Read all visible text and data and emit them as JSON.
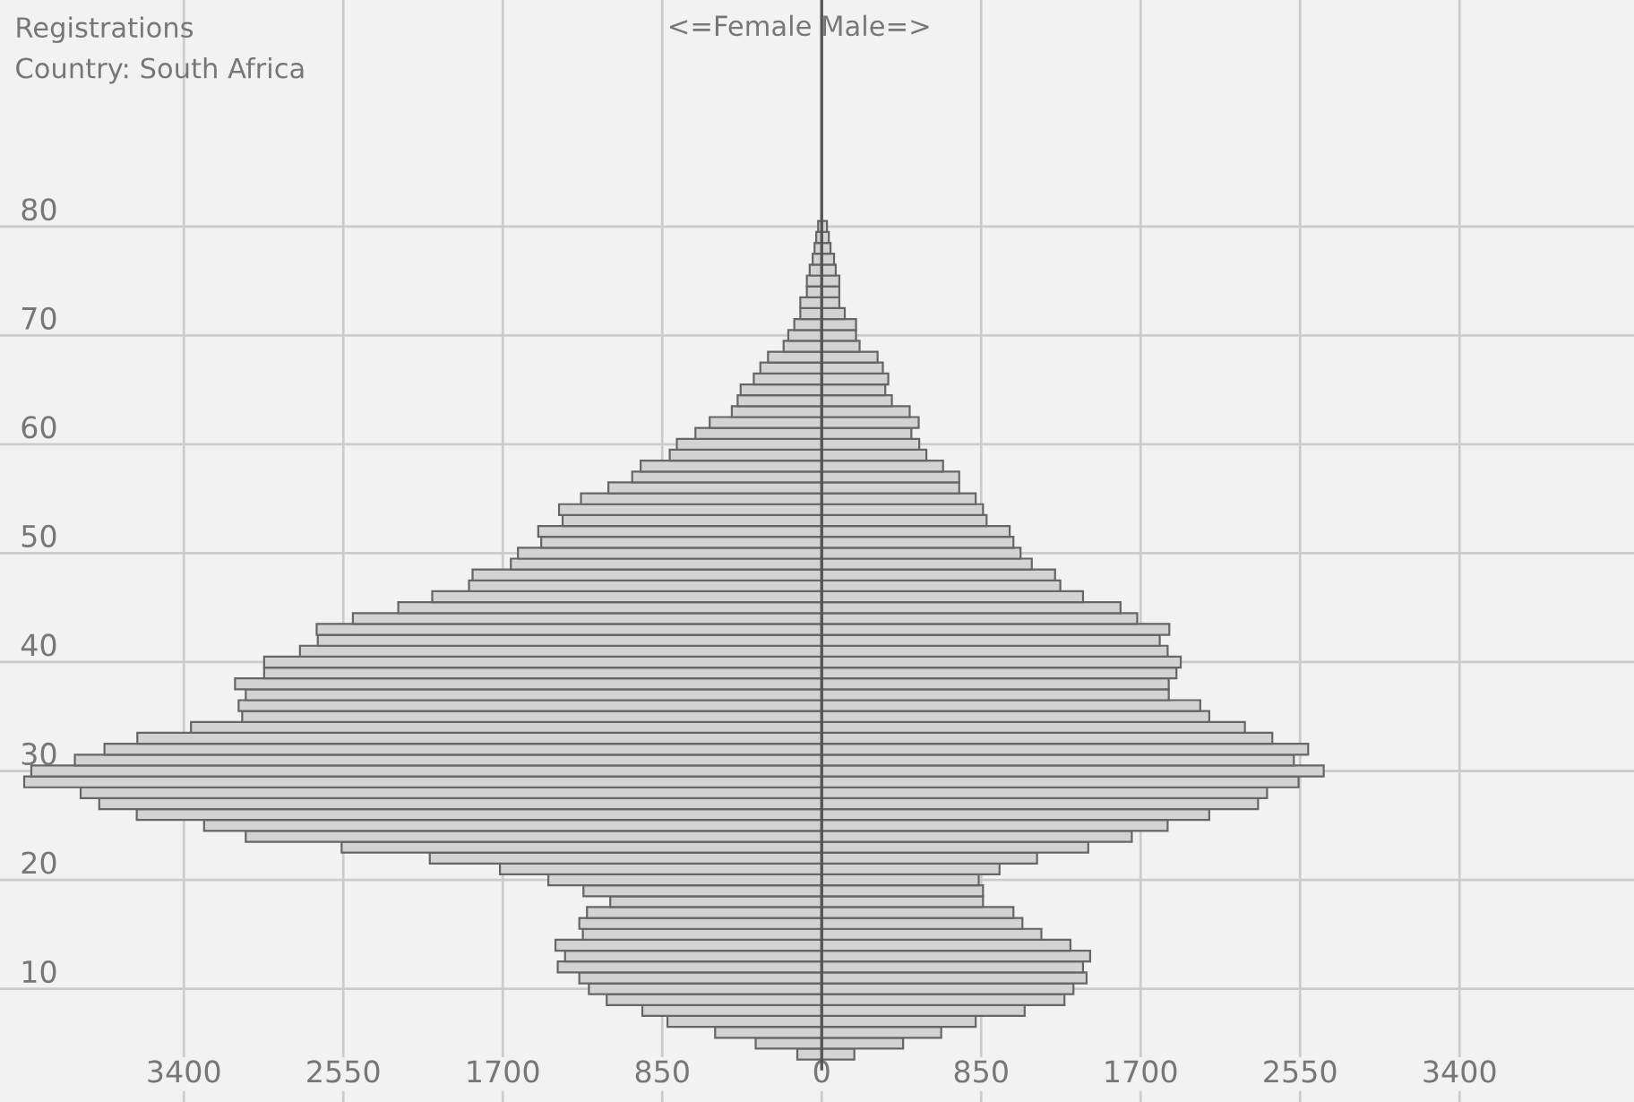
{
  "chart_data": {
    "type": "bar",
    "orientation": "horizontal",
    "title": "Registrations",
    "subtitle": "Country: South Africa",
    "xlabel": "<=Female Male=>",
    "x": [
      4,
      5,
      6,
      7,
      8,
      9,
      10,
      11,
      12,
      13,
      14,
      15,
      16,
      17,
      18,
      19,
      20,
      21,
      22,
      23,
      24,
      25,
      26,
      27,
      28,
      29,
      30,
      31,
      32,
      33,
      34,
      35,
      36,
      37,
      38,
      39,
      40,
      41,
      42,
      43,
      44,
      45,
      46,
      47,
      48,
      49,
      50,
      51,
      52,
      53,
      54,
      55,
      56,
      57,
      58,
      59,
      60,
      61,
      62,
      63,
      64,
      65,
      66,
      67,
      68,
      69,
      70,
      71,
      72,
      73,
      74,
      75,
      76,
      77,
      78,
      79,
      80
    ],
    "series": [
      {
        "color": "#d3d3d3",
        "values": [
          -130,
          -352,
          -568,
          -822,
          -956,
          -1146,
          -1241,
          -1292,
          -1407,
          -1368,
          -1419,
          -1273,
          -1292,
          -1251,
          -1127,
          -1270,
          -1457,
          -1715,
          -2089,
          -2559,
          -3070,
          -3292,
          -3651,
          -3851,
          -3950,
          -4251,
          -4213,
          -3981,
          -3823,
          -3648,
          -3362,
          -3089,
          -3108,
          -3070,
          -3127,
          -2972,
          -2972,
          -2781,
          -2686,
          -2692,
          -2499,
          -2257,
          -2076,
          -1880,
          -1861,
          -1657,
          -1619,
          -1495,
          -1511,
          -1381,
          -1400,
          -1283,
          -1137,
          -1010,
          -965,
          -810,
          -772,
          -673,
          -597,
          -479,
          -448,
          -432,
          -362,
          -327,
          -286,
          -203,
          -178,
          -146,
          -114,
          -114,
          -79,
          -79,
          -64,
          -48,
          -38,
          -29,
          -19
        ]
      },
      {
        "color": "#d3d3d3",
        "values": [
          174,
          434,
          637,
          821,
          1082,
          1294,
          1342,
          1412,
          1393,
          1431,
          1326,
          1171,
          1070,
          1022,
          860,
          860,
          837,
          948,
          1148,
          1421,
          1653,
          1844,
          2066,
          2326,
          2374,
          2542,
          2676,
          2517,
          2593,
          2402,
          2256,
          2066,
          2018,
          1850,
          1850,
          1891,
          1914,
          1844,
          1802,
          1853,
          1682,
          1593,
          1393,
          1272,
          1244,
          1120,
          1060,
          1022,
          1002,
          879,
          860,
          821,
          733,
          733,
          647,
          558,
          520,
          478,
          517,
          469,
          374,
          339,
          355,
          326,
          298,
          202,
          183,
          183,
          123,
          94,
          94,
          94,
          75,
          66,
          47,
          38,
          28
        ]
      }
    ],
    "xlim": [
      -4380,
      4330
    ],
    "ylim": [
      -0.4,
      100.8
    ],
    "xticks": [
      {
        "value": -3400,
        "label": "3400"
      },
      {
        "value": -2550,
        "label": "2550"
      },
      {
        "value": -1700,
        "label": "1700"
      },
      {
        "value": -850,
        "label": "850"
      },
      0,
      850,
      1700,
      2550,
      3400
    ],
    "yticks": [
      10,
      20,
      30,
      40,
      50,
      60,
      70,
      80
    ],
    "ref_lines": [
      {
        "axis": "x",
        "value": 0,
        "color": "#555555"
      }
    ],
    "grid": true,
    "stacked": true
  }
}
